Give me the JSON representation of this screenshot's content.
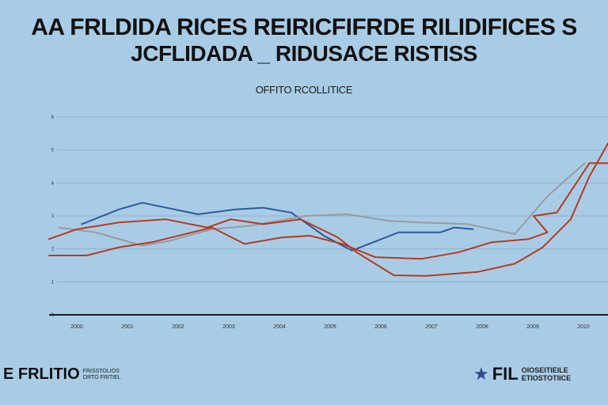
{
  "header": {
    "title_line1": "AA FRLDIDA RICES REIRICFIFRDE RILIDIFICES S",
    "title_line2": "JCFLIDADA _ RIDUSACE RISTISS",
    "subtitle": "OFFITO RCOLLITICE"
  },
  "footer": {
    "left_mark": "E FRLITIO",
    "left_small_1": "FRISSTOLIOS",
    "left_small_2": "ORTO FRITIEL",
    "right_icon": "texas-star-icon",
    "right_mark": "FIL",
    "right_small_1": "OIOSEITIEILE",
    "right_small_2": "ETIOSTOTIICE"
  },
  "colors": {
    "background": "#a9cce6",
    "blue_series": "#2a5aa0",
    "red_series": "#b8391f",
    "gray_series": "#9a9aa0",
    "axis": "#1b1b2a",
    "grid": "#8fb0cf"
  },
  "chart_data": {
    "type": "line",
    "title": "",
    "xlabel": "",
    "ylabel": "",
    "x_tick_labels": [
      "2000",
      "2001",
      "2002",
      "2003",
      "2004",
      "2005",
      "2006",
      "2007",
      "2008",
      "2009",
      "2010"
    ],
    "y_tick_labels": [
      "0",
      "1",
      "2",
      "3",
      "4",
      "5",
      "6"
    ],
    "ylim": [
      0,
      6
    ],
    "xlim": [
      0,
      12
    ],
    "grid": true,
    "series": [
      {
        "key": "blue",
        "points": [
          [
            0.7,
            2.75
          ],
          [
            1.5,
            3.2
          ],
          [
            2.0,
            3.4
          ],
          [
            3.2,
            3.05
          ],
          [
            4.0,
            3.2
          ],
          [
            4.6,
            3.25
          ],
          [
            5.2,
            3.1
          ],
          [
            5.9,
            2.4
          ],
          [
            6.5,
            1.95
          ],
          [
            7.5,
            2.5
          ],
          [
            8.4,
            2.5
          ],
          [
            8.7,
            2.65
          ],
          [
            9.1,
            2.6
          ]
        ]
      },
      {
        "key": "gray",
        "points": [
          [
            0.2,
            2.65
          ],
          [
            1.0,
            2.5
          ],
          [
            2.0,
            2.1
          ],
          [
            2.6,
            2.25
          ],
          [
            3.5,
            2.6
          ],
          [
            4.3,
            2.7
          ],
          [
            5.5,
            3.0
          ],
          [
            6.4,
            3.05
          ],
          [
            7.3,
            2.85
          ],
          [
            8.0,
            2.8
          ],
          [
            9.0,
            2.75
          ],
          [
            10.0,
            2.45
          ],
          [
            10.7,
            3.6
          ],
          [
            11.5,
            4.6
          ]
        ]
      },
      {
        "key": "red1",
        "points": [
          [
            0.0,
            2.3
          ],
          [
            0.6,
            2.6
          ],
          [
            1.5,
            2.8
          ],
          [
            2.5,
            2.9
          ],
          [
            3.4,
            2.65
          ],
          [
            3.9,
            2.9
          ],
          [
            4.6,
            2.75
          ],
          [
            5.4,
            2.9
          ],
          [
            6.2,
            2.35
          ],
          [
            6.6,
            1.9
          ],
          [
            7.4,
            1.2
          ],
          [
            8.1,
            1.18
          ],
          [
            9.2,
            1.3
          ],
          [
            10.0,
            1.55
          ],
          [
            10.6,
            2.05
          ],
          [
            11.2,
            2.9
          ],
          [
            11.6,
            4.2
          ],
          [
            12.0,
            5.2
          ]
        ]
      },
      {
        "key": "red2",
        "points": [
          [
            0.0,
            1.8
          ],
          [
            0.8,
            1.8
          ],
          [
            1.5,
            2.05
          ],
          [
            2.2,
            2.2
          ],
          [
            3.5,
            2.65
          ],
          [
            4.2,
            2.15
          ],
          [
            5.0,
            2.35
          ],
          [
            5.6,
            2.4
          ],
          [
            6.3,
            2.15
          ],
          [
            7.0,
            1.75
          ],
          [
            8.0,
            1.7
          ],
          [
            8.8,
            1.9
          ],
          [
            9.5,
            2.2
          ],
          [
            10.3,
            2.3
          ],
          [
            10.7,
            2.5
          ],
          [
            10.4,
            3.0
          ],
          [
            10.9,
            3.1
          ],
          [
            11.6,
            4.6
          ],
          [
            12.0,
            4.6
          ]
        ]
      }
    ]
  }
}
